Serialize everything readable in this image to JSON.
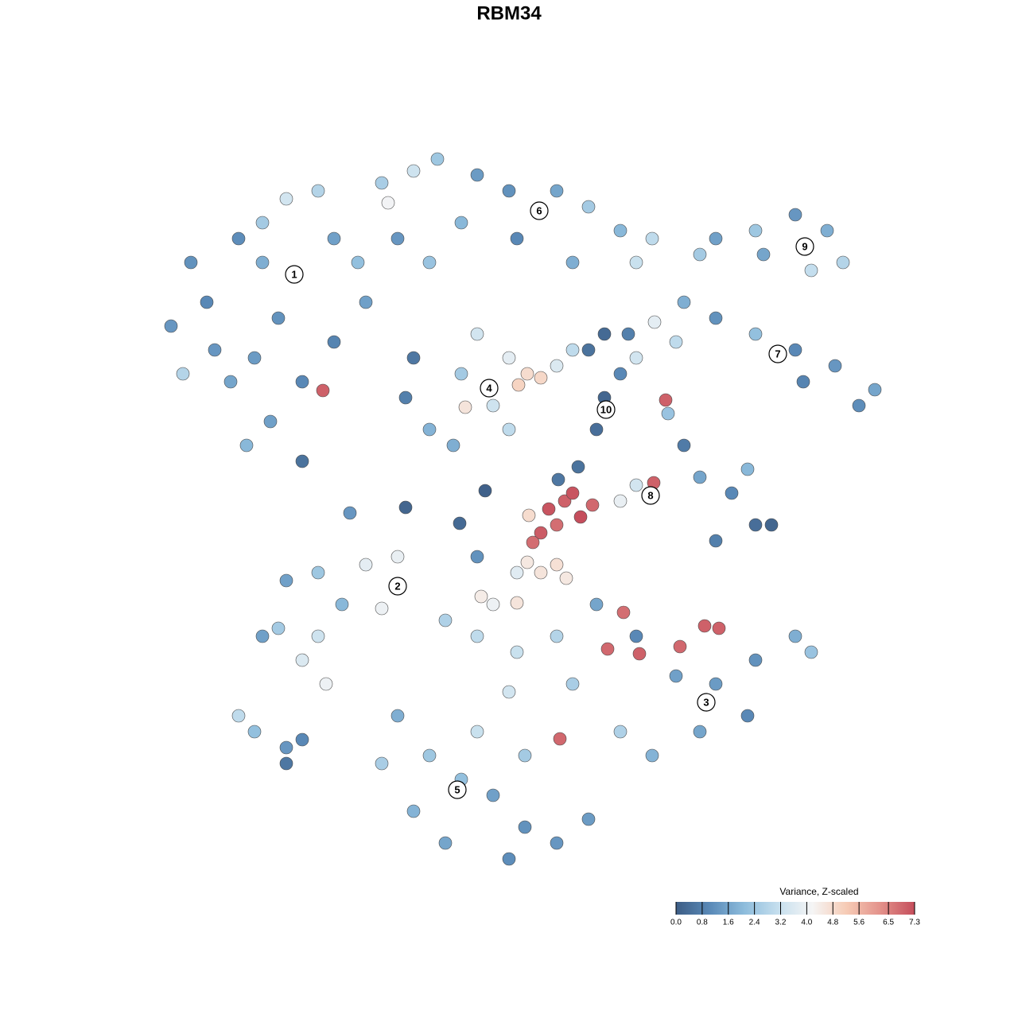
{
  "chart_data": {
    "type": "scatter",
    "title": "RBM34",
    "xlim": [
      19,
      113
    ],
    "ylim": [
      19,
      110
    ],
    "x": [
      24,
      26,
      21.5,
      30,
      33,
      36,
      40,
      42,
      35,
      32,
      38,
      34,
      31,
      38,
      29,
      45,
      46,
      40.6,
      33,
      27,
      23,
      42,
      48,
      52,
      55,
      60,
      64,
      70,
      74,
      78,
      82,
      80,
      58,
      65,
      72,
      50,
      54,
      48.8,
      90,
      95,
      100,
      104,
      106,
      102,
      96,
      88,
      86,
      90,
      95,
      100,
      105,
      110,
      108,
      85,
      101,
      52,
      51,
      54,
      58,
      60,
      64,
      62,
      58.5,
      65.2,
      68,
      66.3,
      57,
      64,
      76,
      74,
      78,
      76,
      75,
      79,
      70,
      72,
      80,
      82.3,
      84,
      86,
      88,
      92,
      95,
      97,
      90,
      94,
      82,
      78,
      80,
      69,
      71,
      73,
      70,
      68,
      74.5,
      72,
      82.2,
      83.7,
      67,
      51,
      44,
      57.8,
      61,
      72.7,
      70.2,
      66.5,
      36,
      40,
      46,
      50,
      48,
      35,
      40,
      43,
      41,
      33,
      38,
      30,
      32,
      36,
      38,
      36,
      80,
      85,
      90,
      95,
      100,
      102,
      94,
      88,
      82,
      78,
      88.6,
      90.4,
      85.5,
      80.4,
      76.4,
      78.4,
      60,
      65,
      68,
      70,
      71.2,
      66.3,
      65,
      60.5,
      62,
      56,
      60,
      65,
      70,
      75,
      72,
      64,
      50,
      54,
      58,
      62,
      66,
      70,
      64,
      56,
      52,
      48,
      60,
      66,
      70.4,
      74
    ],
    "y": [
      95,
      90,
      87,
      98,
      100,
      103,
      104,
      98,
      88,
      83,
      80,
      75,
      72,
      70,
      80,
      95,
      90,
      78.9,
      95,
      84,
      81,
      85,
      105,
      106.5,
      108,
      106,
      104,
      104,
      102,
      99,
      98,
      95,
      100,
      98,
      95,
      98,
      95,
      102.5,
      98,
      99,
      101,
      99,
      95,
      94,
      96,
      96,
      90,
      88,
      86,
      84,
      82,
      79,
      77,
      85,
      80,
      83,
      78,
      74,
      81,
      86,
      83,
      77,
      76.8,
      79.6,
      80.5,
      81,
      72,
      74,
      86,
      84,
      81,
      78,
      74,
      86,
      82,
      84,
      83,
      87.5,
      76,
      72,
      68,
      66,
      62,
      62,
      60,
      69,
      66,
      65,
      67,
      64,
      65,
      63,
      62,
      61,
      64.5,
      66,
      67.3,
      77.7,
      59.8,
      64.2,
      63.5,
      62.2,
      66.3,
      69.3,
      67.7,
      63.2,
      55,
      56,
      57,
      58,
      51.5,
      49,
      48,
      52,
      42,
      48,
      45,
      38,
      36,
      34,
      35,
      32,
      48,
      43,
      42,
      45,
      48,
      46,
      38,
      36,
      33,
      36,
      49.3,
      49,
      46.7,
      45.8,
      46.4,
      51,
      58,
      56,
      56,
      57,
      55.3,
      57.3,
      52.2,
      53,
      52,
      50,
      48,
      46,
      48,
      52,
      42,
      41,
      38,
      33,
      30,
      28,
      24,
      22,
      20,
      22,
      26,
      32,
      36,
      33,
      35.1,
      25
    ],
    "values": [
      1.2,
      1.0,
      1.3,
      1.1,
      2.5,
      3.4,
      2.8,
      1.5,
      1.2,
      1.4,
      1.0,
      1.5,
      2.0,
      0.5,
      1.6,
      2.2,
      1.5,
      7.0,
      1.8,
      1.3,
      2.8,
      0.9,
      2.6,
      3.3,
      2.4,
      1.4,
      1.2,
      1.6,
      2.5,
      2.0,
      3.0,
      3.2,
      2.0,
      1.0,
      1.8,
      1.3,
      2.3,
      4.1,
      1.5,
      2.4,
      1.3,
      1.8,
      2.8,
      3.1,
      1.6,
      2.5,
      1.8,
      1.2,
      2.2,
      1.0,
      1.3,
      1.6,
      1.1,
      3.0,
      0.9,
      0.6,
      0.8,
      1.9,
      2.5,
      3.4,
      3.8,
      3.3,
      4.6,
      5.0,
      4.9,
      4.8,
      1.8,
      3.0,
      0.3,
      0.5,
      1.0,
      0.2,
      0.4,
      0.8,
      3.6,
      3.0,
      3.4,
      3.8,
      2.3,
      0.7,
      1.6,
      1.0,
      0.4,
      0.2,
      0.8,
      2.0,
      3.7,
      3.9,
      3.4,
      7.2,
      7.0,
      7.3,
      6.8,
      7.1,
      6.9,
      7.2,
      7.0,
      7.0,
      6.8,
      0.2,
      1.3,
      0.3,
      0.1,
      0.5,
      0.6,
      4.8,
      1.5,
      2.4,
      3.8,
      3.9,
      4.0,
      2.5,
      3.3,
      2.0,
      4.0,
      1.5,
      3.6,
      3.0,
      2.2,
      1.3,
      1.0,
      0.6,
      1.0,
      1.5,
      1.4,
      1.2,
      1.8,
      2.3,
      1.0,
      1.6,
      1.9,
      2.7,
      7.0,
      7.0,
      6.9,
      7.0,
      6.9,
      6.8,
      1.2,
      3.7,
      4.6,
      4.7,
      4.5,
      4.5,
      4.6,
      4.4,
      4.0,
      2.7,
      3.0,
      3.2,
      2.8,
      1.6,
      2.6,
      3.4,
      1.8,
      2.4,
      2.2,
      1.5,
      1.2,
      1.3,
      1.1,
      1.6,
      1.9,
      2.6,
      3.2,
      2.5,
      6.9,
      1.4
    ],
    "cluster_labels": {
      "texts": [
        "1",
        "2",
        "3",
        "4",
        "5",
        "6",
        "7",
        "8",
        "9",
        "10"
      ],
      "x": [
        37,
        50,
        88.8,
        61.5,
        57.5,
        67.8,
        97.8,
        81.8,
        101.2,
        76.2
      ],
      "y": [
        93.5,
        54.3,
        39.7,
        79.2,
        28.7,
        101.5,
        83.5,
        65.7,
        97,
        76.5
      ]
    },
    "colorbar_title": "Variance, Z-scaled",
    "clim": [
      0,
      7.3
    ],
    "cticks": [
      {
        "value": 0,
        "label": "0.0"
      },
      0.8,
      1.6,
      2.4,
      3.2,
      {
        "value": 4,
        "label": "4.0"
      },
      4.8,
      5.6,
      6.5,
      7.3
    ],
    "colorscale": [
      "#3d5d85",
      "#5a8ab8",
      "#8dbcdc",
      "#c6dfee",
      "#f5f5f5",
      "#f6cbb5",
      "#e3918a",
      "#c54e5c"
    ]
  }
}
